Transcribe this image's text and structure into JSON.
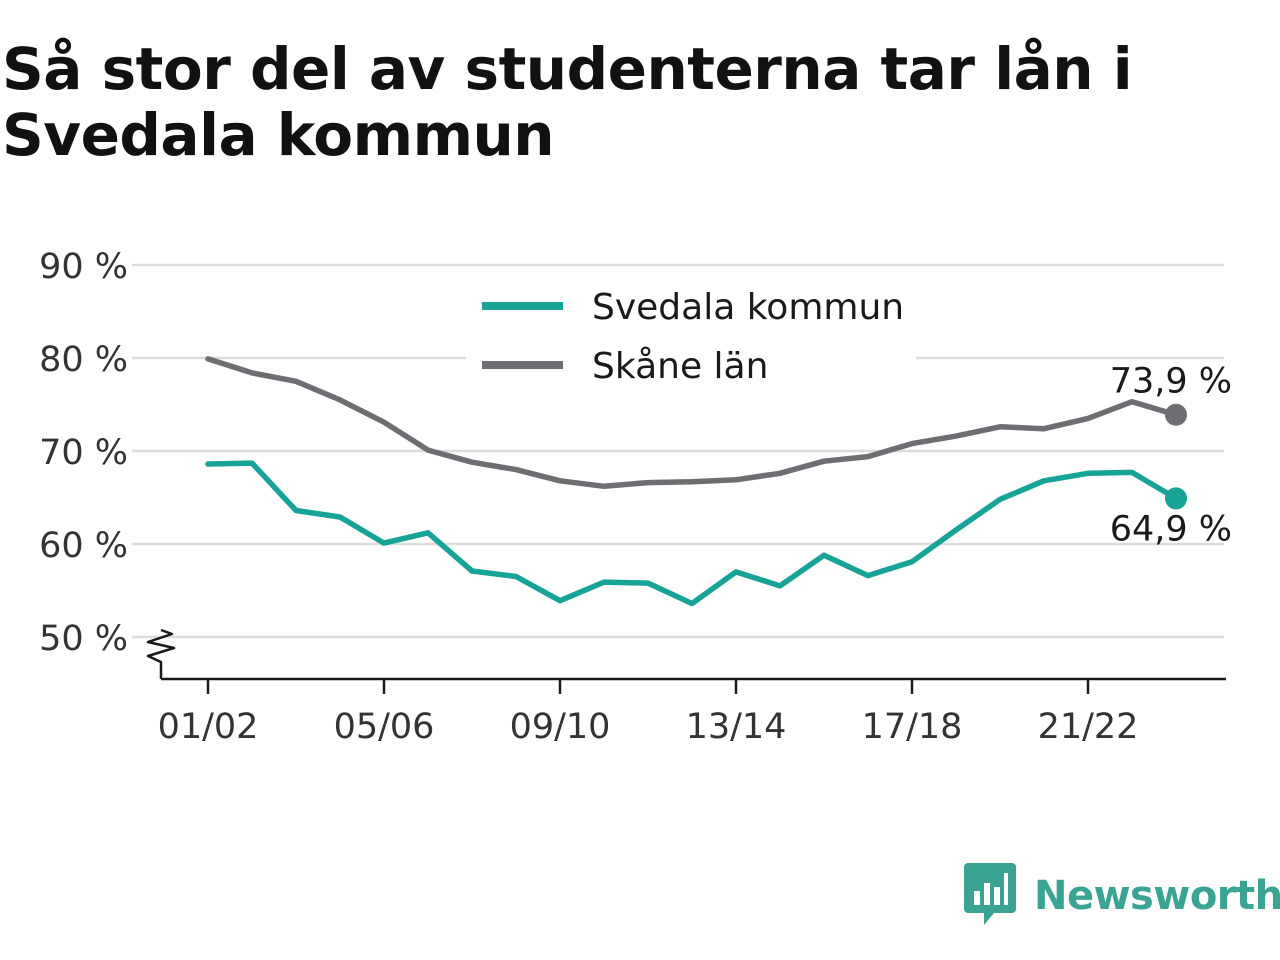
{
  "title": "Så stor del av studenterna tar lån i Svedala kommun",
  "brand": {
    "name": "Newsworthy",
    "color": "#3aa394",
    "icon": "newsworthy-chat-bars-icon"
  },
  "colors": {
    "svedala": "#17a397",
    "skane": "#6e6d72",
    "grid": "#dcdcdc",
    "axis": "#1a1a1a",
    "text": "#333333"
  },
  "chart_data": {
    "type": "line",
    "title": "Så stor del av studenterna tar lån i Svedala kommun",
    "ylim": [
      50,
      90
    ],
    "y_ticks": [
      50,
      60,
      70,
      80,
      90
    ],
    "y_tick_labels": [
      "50 %",
      "60 %",
      "70 %",
      "80 %",
      "90 %"
    ],
    "y_axis_break": true,
    "x_tick_labels": [
      "01/02",
      "05/06",
      "09/10",
      "13/14",
      "17/18",
      "21/22"
    ],
    "x_tick_indices": [
      0,
      4,
      8,
      12,
      16,
      20
    ],
    "grid": true,
    "legend_placement": "top-center",
    "x": [
      "01/02",
      "02/03",
      "03/04",
      "04/05",
      "05/06",
      "06/07",
      "07/08",
      "08/09",
      "09/10",
      "10/11",
      "11/12",
      "12/13",
      "13/14",
      "14/15",
      "15/16",
      "16/17",
      "17/18",
      "18/19",
      "19/20",
      "20/21",
      "21/22",
      "22/23",
      "23/24"
    ],
    "series": [
      {
        "name": "Svedala kommun",
        "key": "svedala",
        "values": [
          68.6,
          68.7,
          63.6,
          62.9,
          60.1,
          61.2,
          57.1,
          56.5,
          53.9,
          55.9,
          55.8,
          53.6,
          57.0,
          55.5,
          58.8,
          56.6,
          58.1,
          61.5,
          64.8,
          66.8,
          67.6,
          67.7,
          64.9
        ],
        "end_label": "64,9 %"
      },
      {
        "name": "Skåne län",
        "key": "skane",
        "values": [
          79.9,
          78.4,
          77.5,
          75.5,
          73.1,
          70.1,
          68.8,
          68.0,
          66.8,
          66.2,
          66.6,
          66.7,
          66.9,
          67.6,
          68.9,
          69.4,
          70.8,
          71.6,
          72.6,
          72.4,
          73.5,
          75.3,
          73.9
        ],
        "end_label": "73,9 %"
      }
    ]
  }
}
